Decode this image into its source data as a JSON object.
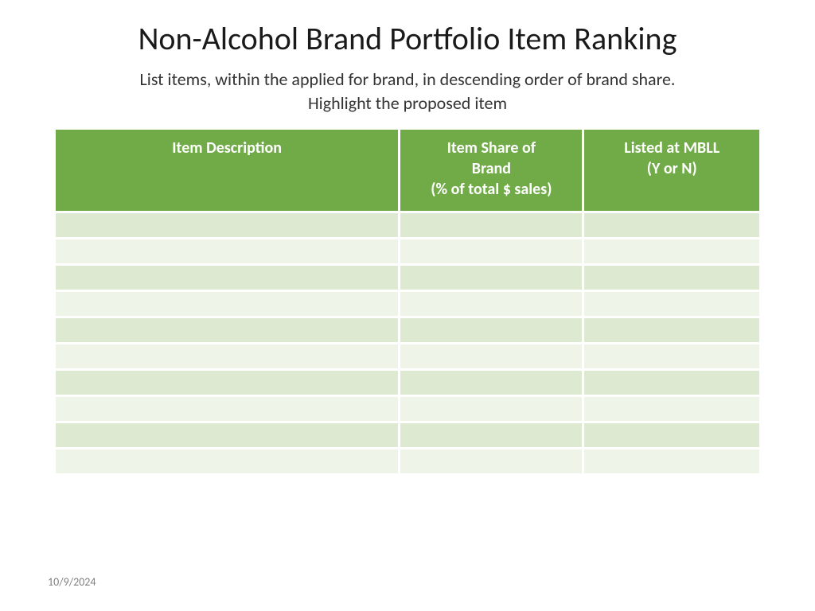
{
  "title": "Non-Alcohol Brand Portfolio Item Ranking",
  "subtitle_line1": "List items, within the applied for brand, in descending order of brand share.",
  "subtitle_line2": "Highlight the proposed item",
  "footer_date": "10/9/2024",
  "table": {
    "header_bg": "#71ab48",
    "row_alt1_bg": "#dde9d1",
    "row_alt2_bg": "#eef4e8",
    "columns": [
      {
        "label_line1": "Item Description",
        "label_line2": "",
        "label_line3": "",
        "width": "49%"
      },
      {
        "label_line1": "Item Share of",
        "label_line2": "Brand",
        "label_line3": "(% of total $ sales)",
        "width": "26%"
      },
      {
        "label_line1": "Listed at MBLL",
        "label_line2": "(Y or N)",
        "label_line3": "",
        "width": "25%"
      }
    ],
    "rows": [
      [
        "",
        "",
        ""
      ],
      [
        "",
        "",
        ""
      ],
      [
        "",
        "",
        ""
      ],
      [
        "",
        "",
        ""
      ],
      [
        "",
        "",
        ""
      ],
      [
        "",
        "",
        ""
      ],
      [
        "",
        "",
        ""
      ],
      [
        "",
        "",
        ""
      ],
      [
        "",
        "",
        ""
      ],
      [
        "",
        "",
        ""
      ]
    ]
  }
}
